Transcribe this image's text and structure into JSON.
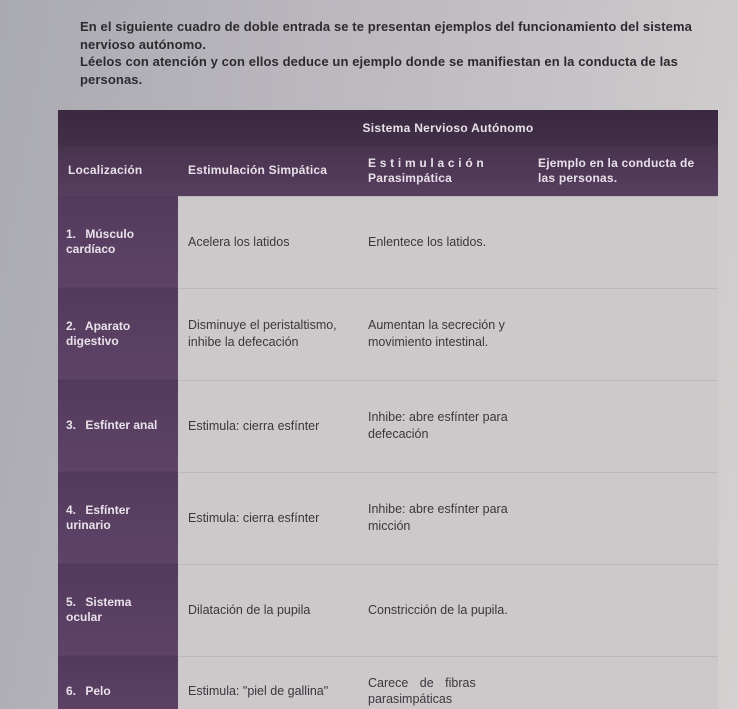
{
  "intro_line1": "En el siguiente cuadro de doble entrada se te presentan ejemplos del funcionamiento del sistema nervioso autónomo.",
  "intro_line2": "Léelos con atención y con ellos deduce un ejemplo donde se manifiestan en la conducta de las personas.",
  "table": {
    "top_header": "Sistema Nervioso Autónomo",
    "columns": {
      "c1": "Localización",
      "c2": "Estimulación Simpática",
      "c3": "E s t i m u l a c i ó n Parasimpática",
      "c4": "Ejemplo en la conducta de las personas."
    },
    "rows": [
      {
        "num": "1.",
        "label": "Músculo cardíaco",
        "simp": "Acelera los latidos",
        "para": "Enlentece los latidos.",
        "ej": ""
      },
      {
        "num": "2.",
        "label": "Aparato digestivo",
        "simp": "Disminuye el peristaltismo, inhibe la defecación",
        "para": "Aumentan la secreción y movimiento intestinal.",
        "ej": ""
      },
      {
        "num": "3.",
        "label": "Esfínter anal",
        "simp": "Estimula: cierra esfínter",
        "para": "Inhibe: abre esfínter para defecación",
        "ej": ""
      },
      {
        "num": "4.",
        "label": "Esfínter urinario",
        "simp": "Estimula: cierra esfínter",
        "para": "Inhibe: abre esfínter para micción",
        "ej": ""
      },
      {
        "num": "5.",
        "label": "Sistema ocular",
        "simp": "Dilatación de la pupila",
        "para": "Constricción de la pupila.",
        "ej": ""
      },
      {
        "num": "6.",
        "label": "Pelo",
        "simp": "Estimula: \"piel de gallina\"",
        "para": "Carece de fibras parasimpáticas",
        "ej": ""
      }
    ]
  },
  "colors": {
    "page_bg_left": "#a9a9b1",
    "page_bg_right": "#d5d1d1",
    "header_dark": "#3f2c47",
    "header_mid": "#513a59",
    "row_head": "#5a3f63",
    "cell_bg": "#cdc9cb",
    "text_light": "#e9e2ea",
    "text_dark": "#3a373d"
  }
}
